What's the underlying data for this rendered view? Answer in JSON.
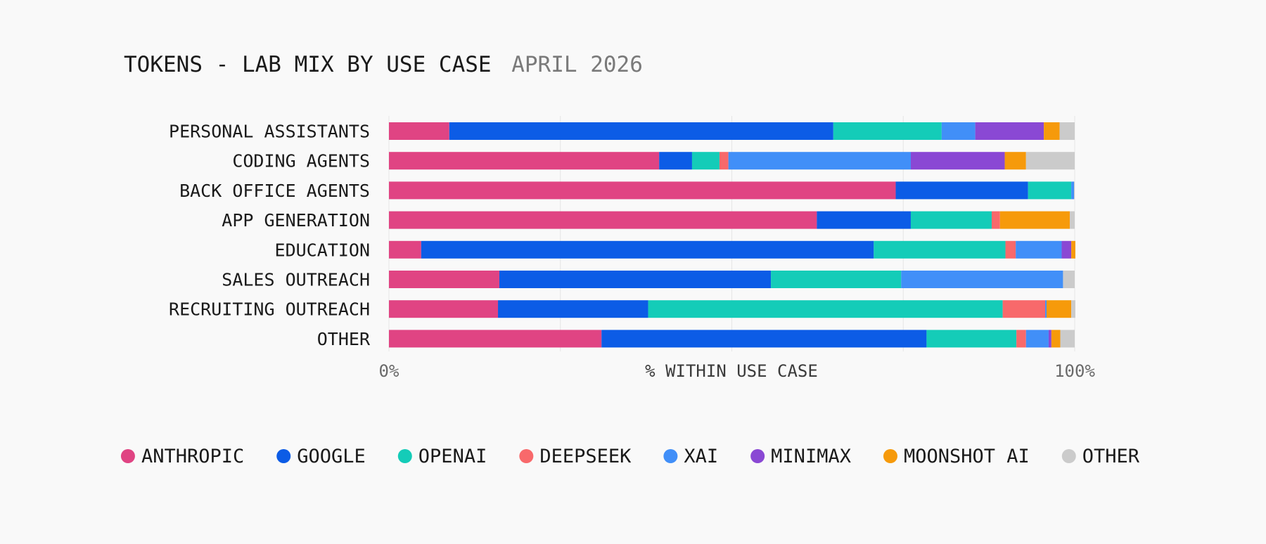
{
  "chart_data": {
    "type": "bar",
    "orientation": "horizontal",
    "stacked": true,
    "normalized": true,
    "title": "TOKENS - LAB MIX BY USE CASE",
    "subtitle": "APRIL 2026",
    "xlabel": "% WITHIN USE CASE",
    "ylabel": "",
    "xlim": [
      0,
      100
    ],
    "x_ticks": [
      "0%",
      "100%"
    ],
    "grid": true,
    "legend_position": "bottom",
    "categories": [
      "PERSONAL ASSISTANTS",
      "CODING AGENTS",
      "BACK OFFICE AGENTS",
      "APP GENERATION",
      "EDUCATION",
      "SALES OUTREACH",
      "RECRUITING OUTREACH",
      "OTHER"
    ],
    "series": [
      {
        "name": "ANTHROPIC",
        "color": "#e04483",
        "values": [
          8.8,
          39.4,
          73.9,
          62.4,
          4.7,
          16.1,
          15.9,
          31.0
        ]
      },
      {
        "name": "GOOGLE",
        "color": "#0c5ce6",
        "values": [
          56.0,
          4.8,
          19.3,
          13.7,
          66.0,
          39.6,
          21.9,
          47.4
        ]
      },
      {
        "name": "OPENAI",
        "color": "#14ccb8",
        "values": [
          15.8,
          4.0,
          6.3,
          11.8,
          19.2,
          19.0,
          51.7,
          13.1
        ]
      },
      {
        "name": "DEEPSEEK",
        "color": "#f8696b",
        "values": [
          0.0,
          1.3,
          0.0,
          1.2,
          1.5,
          0.0,
          6.2,
          1.4
        ]
      },
      {
        "name": "XAI",
        "color": "#418ff8",
        "values": [
          4.9,
          26.6,
          0.4,
          0.0,
          6.7,
          23.6,
          0.2,
          3.3
        ]
      },
      {
        "name": "MINIMAX",
        "color": "#8a48d4",
        "values": [
          10.0,
          13.7,
          0.0,
          0.0,
          1.4,
          0.0,
          0.0,
          0.4
        ]
      },
      {
        "name": "MOONSHOT AI",
        "color": "#f69a0b",
        "values": [
          2.3,
          3.1,
          0.0,
          10.2,
          0.6,
          0.0,
          3.6,
          1.3
        ]
      },
      {
        "name": "OTHER",
        "color": "#cbcbcb",
        "values": [
          2.2,
          7.1,
          0.1,
          0.7,
          0.0,
          1.7,
          0.6,
          2.1
        ]
      }
    ]
  }
}
